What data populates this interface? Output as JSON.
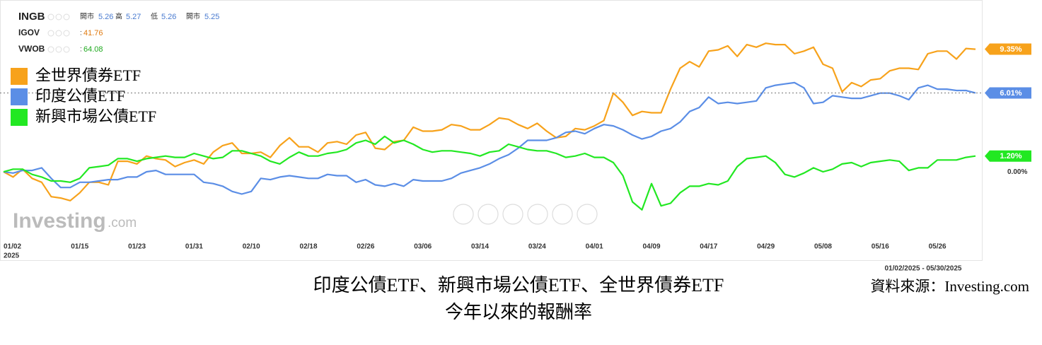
{
  "header": {
    "rows": [
      {
        "symbol": "INGB",
        "fields": [
          {
            "label": "開市",
            "value": 5.26
          },
          {
            "label": "高",
            "value": 5.27
          },
          {
            "label": "低",
            "value": 5.26
          },
          {
            "label": "開市",
            "value": 5.25
          }
        ]
      },
      {
        "symbol": "IGOV",
        "fields": [
          {
            "label": ":",
            "value": 41.76
          }
        ]
      },
      {
        "symbol": "VWOB",
        "fields": [
          {
            "label": ":",
            "value": 64.08
          }
        ]
      }
    ]
  },
  "watermark": {
    "main": "Investing",
    "suffix": ".com"
  },
  "date_range": "01/02/2025 - 05/30/2025",
  "source": "資料來源：Investing.com",
  "caption": [
    "印度公債ETF、新興市場公債ETF、全世界債券ETF",
    "今年以來的報酬率"
  ],
  "chart_data": {
    "type": "line",
    "x_year": "2025",
    "categories": [
      "01/02",
      null,
      null,
      null,
      null,
      null,
      null,
      null,
      "01/15",
      null,
      null,
      null,
      null,
      null,
      "01/23",
      null,
      null,
      null,
      null,
      null,
      "01/31",
      null,
      null,
      null,
      null,
      null,
      "02/10",
      null,
      null,
      null,
      null,
      null,
      "02/18",
      null,
      null,
      null,
      null,
      null,
      "02/26",
      null,
      null,
      null,
      null,
      null,
      "03/06",
      null,
      null,
      null,
      null,
      null,
      "03/14",
      null,
      null,
      null,
      null,
      null,
      "03/24",
      null,
      null,
      null,
      null,
      null,
      "04/01",
      null,
      null,
      null,
      null,
      null,
      "04/09",
      null,
      null,
      null,
      null,
      null,
      "04/17",
      null,
      null,
      null,
      null,
      null,
      "04/29",
      null,
      null,
      null,
      null,
      null,
      "05/08",
      null,
      null,
      null,
      null,
      null,
      "05/16",
      null,
      null,
      null,
      null,
      null,
      "05/26",
      null,
      null,
      null,
      null
    ],
    "ylim": [
      -5.5,
      13.1
    ],
    "yticks": [
      {
        "value": 0,
        "label": "0.00%"
      }
    ],
    "grid": false,
    "legend": "top-left",
    "series": [
      {
        "name": "全世界債券ETF",
        "color": "#f7a21b",
        "value_labels": {
          "102": "9.35%"
        },
        "values": [
          0,
          -0.4,
          0.2,
          -0.5,
          -0.8,
          -1.9,
          -2.0,
          -2.2,
          -1.6,
          -0.8,
          -0.8,
          -1.0,
          0.8,
          0.8,
          0.6,
          1.2,
          1.0,
          0.9,
          0.4,
          0.7,
          0.9,
          0.6,
          1.5,
          2.0,
          2.2,
          1.4,
          1.4,
          1.5,
          1.1,
          2.0,
          2.6,
          1.9,
          1.9,
          1.5,
          2.2,
          2.3,
          2.1,
          2.8,
          3.0,
          1.8,
          1.7,
          2.3,
          2.4,
          3.4,
          3.1,
          3.1,
          3.2,
          3.6,
          3.5,
          3.2,
          3.2,
          3.6,
          4.1,
          4.0,
          3.6,
          3.3,
          3.7,
          3.1,
          2.6,
          2.7,
          3.3,
          3.2,
          3.5,
          3.9,
          6.0,
          5.3,
          4.3,
          4.6,
          4.5,
          4.5,
          6.3,
          7.9,
          8.4,
          8.0,
          9.2,
          9.3,
          9.6,
          8.8,
          9.7,
          9.5,
          9.8,
          9.7,
          9.7,
          9.0,
          9.2,
          9.5,
          8.2,
          7.9,
          6.1,
          6.8,
          6.5,
          7.0,
          7.1,
          7.7,
          7.9,
          7.9,
          7.8,
          9.0,
          9.2,
          9.2,
          8.6,
          9.4,
          9.35
        ]
      },
      {
        "name": "印度公債ETF",
        "color": "#5b8ee6",
        "value_labels": {
          "102": "6.01%"
        },
        "values": [
          0,
          -0.1,
          0.1,
          0.1,
          0.3,
          -0.5,
          -1.2,
          -1.2,
          -0.8,
          -0.8,
          -0.7,
          -0.6,
          -0.6,
          -0.4,
          -0.4,
          0,
          0.1,
          -0.2,
          -0.2,
          -0.2,
          -0.2,
          -0.8,
          -0.9,
          -1.1,
          -1.5,
          -1.7,
          -1.5,
          -0.5,
          -0.6,
          -0.4,
          -0.3,
          -0.4,
          -0.5,
          -0.5,
          -0.2,
          -0.3,
          -0.3,
          -0.8,
          -0.6,
          -1.0,
          -1.1,
          -0.9,
          -1.1,
          -0.6,
          -0.7,
          -0.7,
          -0.7,
          -0.5,
          -0.1,
          0.1,
          0.3,
          0.6,
          1.0,
          1.3,
          1.8,
          2.4,
          2.4,
          2.4,
          2.6,
          3.0,
          3.1,
          2.9,
          3.3,
          3.6,
          3.5,
          3.2,
          2.8,
          2.5,
          2.7,
          3.1,
          3.3,
          3.8,
          4.6,
          4.9,
          5.7,
          5.2,
          5.3,
          5.2,
          5.3,
          5.4,
          6.4,
          6.6,
          6.7,
          6.8,
          6.4,
          5.2,
          5.3,
          5.8,
          5.7,
          5.6,
          5.6,
          5.8,
          6.0,
          6.0,
          5.8,
          5.5,
          6.4,
          6.6,
          6.3,
          6.3,
          6.2,
          6.2,
          6.01
        ]
      },
      {
        "name": "新興市場公債ETF",
        "color": "#22e822",
        "value_labels": {
          "102": "1.20%"
        },
        "values": [
          0,
          0.2,
          0.2,
          -0.2,
          -0.4,
          -0.7,
          -0.7,
          -0.8,
          -0.5,
          0.3,
          0.4,
          0.5,
          1.0,
          1.0,
          0.8,
          1.0,
          1.1,
          1.2,
          1.1,
          1.1,
          1.4,
          1.2,
          1.0,
          1.1,
          1.6,
          1.6,
          1.4,
          1.2,
          0.8,
          0.6,
          1.1,
          1.5,
          1.2,
          1.2,
          1.4,
          1.5,
          1.7,
          2.2,
          2.4,
          2.1,
          2.7,
          2.2,
          2.4,
          2.1,
          1.7,
          1.5,
          1.6,
          1.6,
          1.5,
          1.4,
          1.2,
          1.5,
          1.6,
          2.1,
          1.9,
          1.7,
          1.6,
          1.6,
          1.4,
          1.1,
          1.2,
          1.4,
          1.1,
          1.1,
          0.7,
          -0.3,
          -2.3,
          -2.9,
          -0.9,
          -2.6,
          -2.4,
          -1.6,
          -1.1,
          -1.1,
          -0.9,
          -1.0,
          -0.7,
          0.4,
          1.0,
          1.1,
          1.2,
          0.7,
          -0.2,
          -0.4,
          -0.1,
          0.3,
          0,
          0.2,
          0.6,
          0.7,
          0.4,
          0.7,
          0.8,
          0.9,
          0.8,
          0.1,
          0.3,
          0.3,
          0.9,
          0.9,
          0.9,
          1.1,
          1.2
        ]
      }
    ]
  }
}
